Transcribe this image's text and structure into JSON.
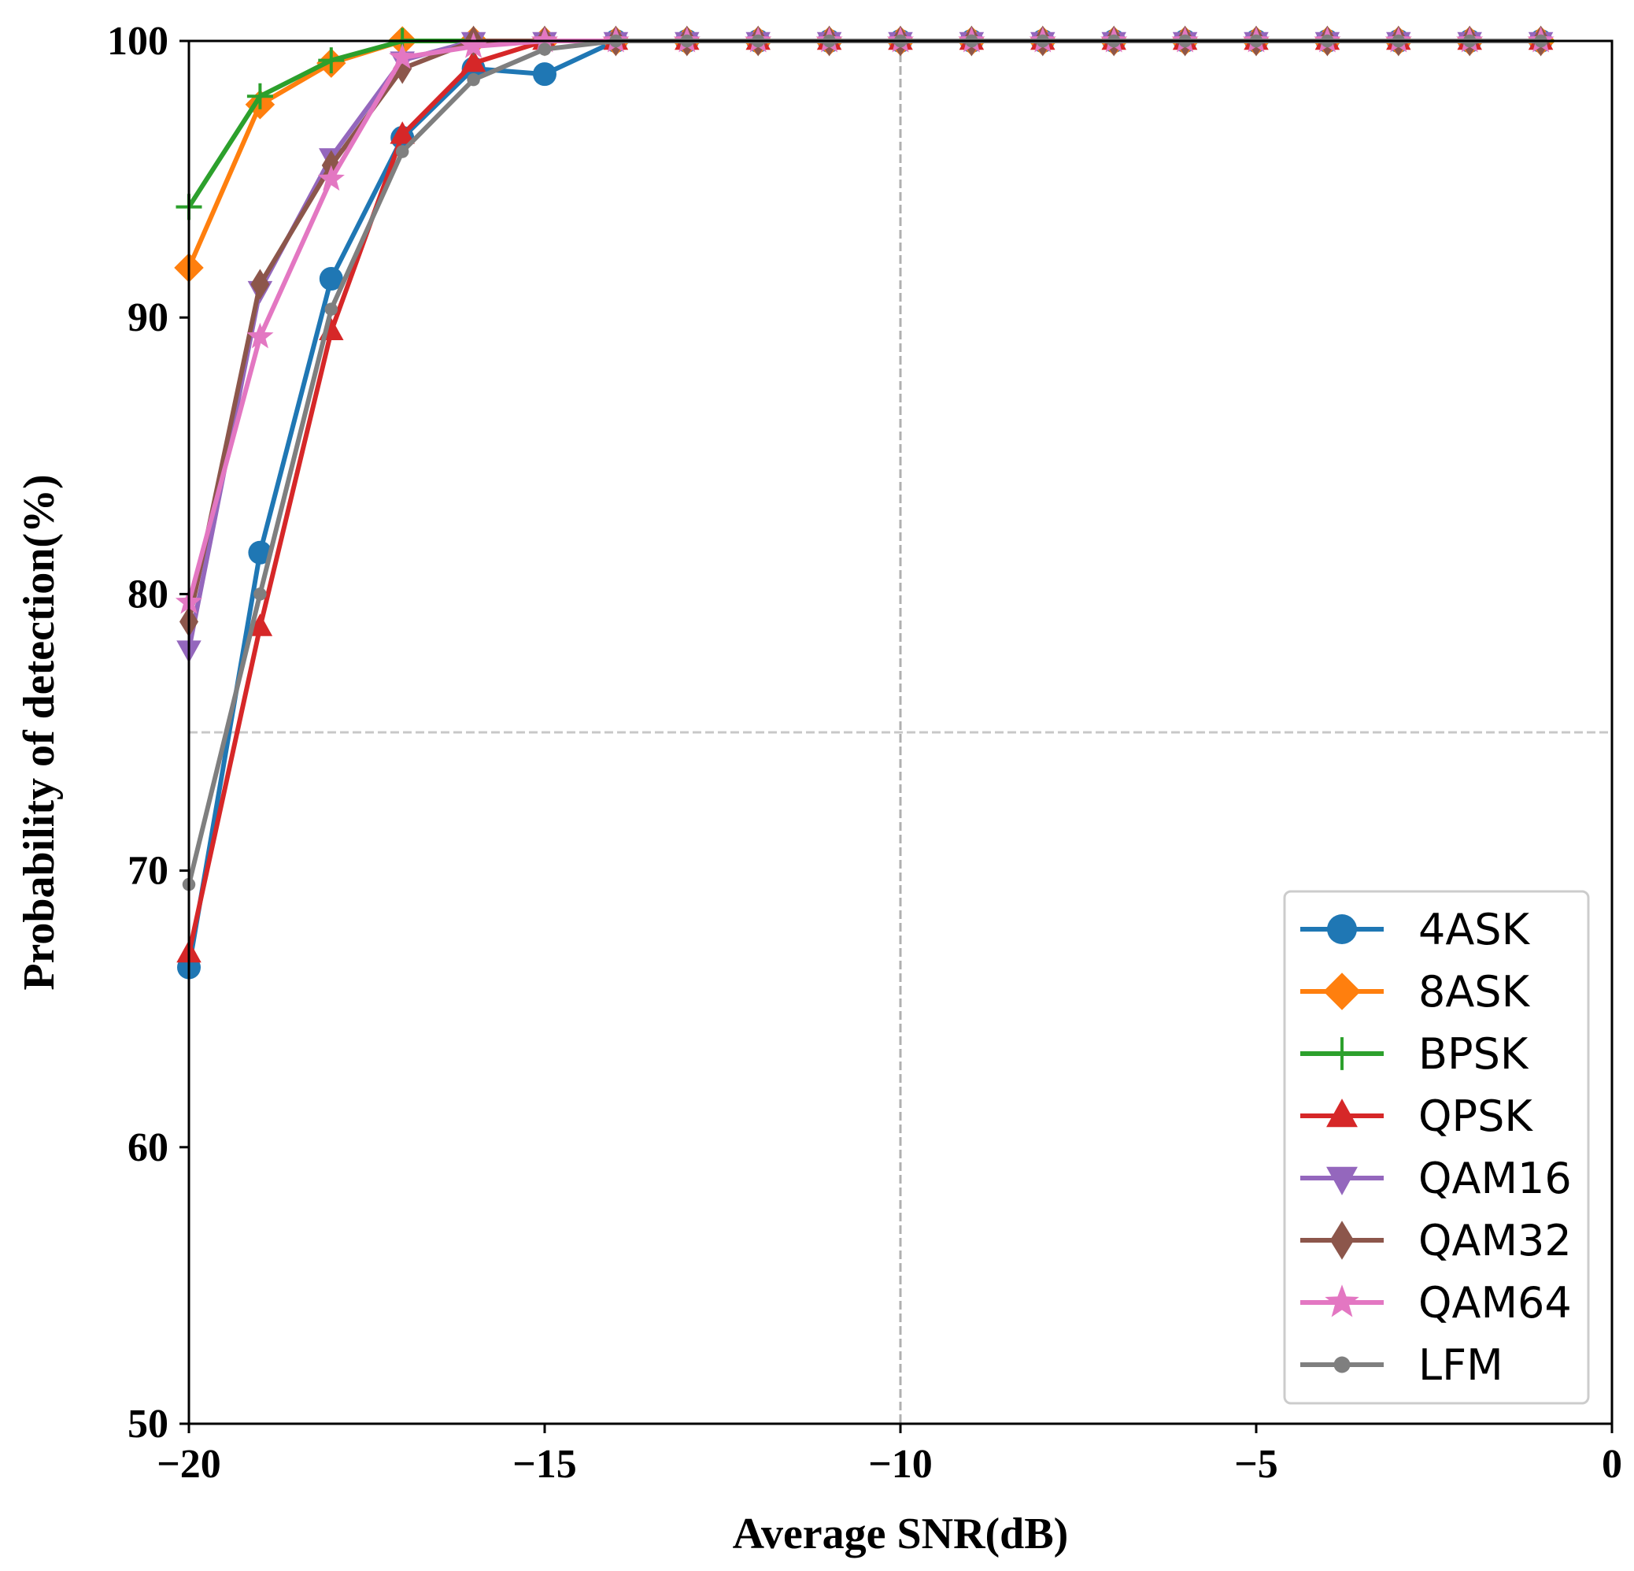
{
  "chart_data": {
    "type": "line",
    "title": "",
    "xlabel": "Average SNR(dB)",
    "ylabel": "Probability of detection(%)",
    "xlim": [
      -20,
      0
    ],
    "ylim": [
      50,
      100
    ],
    "xticks": [
      -20,
      -15,
      -10,
      -5,
      0
    ],
    "xtick_labels": [
      "−20",
      "−15",
      "−10",
      "−5",
      "0"
    ],
    "yticks": [
      50,
      60,
      70,
      80,
      90,
      100
    ],
    "ytick_labels": [
      "50",
      "60",
      "70",
      "80",
      "90",
      "100"
    ],
    "reference_lines": {
      "x": -10,
      "y": 75
    },
    "legend_position": "lower-right",
    "x": [
      -20,
      -19,
      -18,
      -17,
      -16,
      -15,
      -14,
      -13,
      -12,
      -11,
      -10,
      -9,
      -8,
      -7,
      -6,
      -5,
      -4,
      -3,
      -2,
      -1
    ],
    "series": [
      {
        "name": "4ASK",
        "color": "#1f77b4",
        "marker": "circle",
        "values": [
          66.5,
          81.5,
          91.4,
          96.5,
          99.0,
          98.8,
          100,
          100,
          100,
          100,
          100,
          100,
          100,
          100,
          100,
          100,
          100,
          100,
          100,
          100
        ]
      },
      {
        "name": "8ASK",
        "color": "#ff7f0e",
        "marker": "diamond",
        "values": [
          91.8,
          97.7,
          99.2,
          100,
          100,
          100,
          100,
          100,
          100,
          100,
          100,
          100,
          100,
          100,
          100,
          100,
          100,
          100,
          100,
          100
        ]
      },
      {
        "name": "BPSK",
        "color": "#2ca02c",
        "marker": "plus",
        "values": [
          94.0,
          98.0,
          99.3,
          100,
          100,
          100,
          100,
          100,
          100,
          100,
          100,
          100,
          100,
          100,
          100,
          100,
          100,
          100,
          100,
          100
        ]
      },
      {
        "name": "QPSK",
        "color": "#d62728",
        "marker": "triangle-up",
        "values": [
          67.0,
          78.8,
          89.5,
          96.6,
          99.2,
          100,
          100,
          100,
          100,
          100,
          100,
          100,
          100,
          100,
          100,
          100,
          100,
          100,
          100,
          100
        ]
      },
      {
        "name": "QAM16",
        "color": "#9467bd",
        "marker": "triangle-down",
        "values": [
          78.0,
          91.0,
          95.8,
          99.3,
          100,
          100,
          100,
          100,
          100,
          100,
          100,
          100,
          100,
          100,
          100,
          100,
          100,
          100,
          100,
          100
        ]
      },
      {
        "name": "QAM32",
        "color": "#8c564b",
        "marker": "thin-diamond",
        "values": [
          79.0,
          91.2,
          95.5,
          99.0,
          100,
          100,
          100,
          100,
          100,
          100,
          100,
          100,
          100,
          100,
          100,
          100,
          100,
          100,
          100,
          100
        ]
      },
      {
        "name": "QAM64",
        "color": "#e377c2",
        "marker": "star",
        "values": [
          79.7,
          89.3,
          95.0,
          99.4,
          99.8,
          100,
          100,
          100,
          100,
          100,
          100,
          100,
          100,
          100,
          100,
          100,
          100,
          100,
          100,
          100
        ]
      },
      {
        "name": "LFM",
        "color": "#7f7f7f",
        "marker": "point",
        "values": [
          69.5,
          80.0,
          90.3,
          96.0,
          98.6,
          99.7,
          100,
          100,
          100,
          100,
          100,
          100,
          100,
          100,
          100,
          100,
          100,
          100,
          100,
          100
        ]
      }
    ]
  }
}
